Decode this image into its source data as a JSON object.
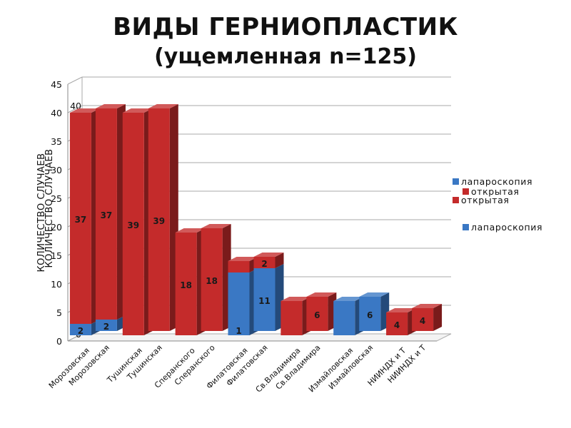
{
  "title": "ВИДЫ ГЕРНИОПЛАСТИК",
  "subtitle": "(ущемленная n=125)",
  "chart_data": {
    "type": "bar",
    "stacked": true,
    "three_d": true,
    "title": "ВИДЫ ГЕРНИОПЛАСТИК",
    "subtitle": "(ущемленная n=125)",
    "ylabel": "КОЛИЧЕСТВО СЛУЧАЕВ",
    "ylim": [
      0,
      45
    ],
    "yticks": [
      0,
      5,
      10,
      15,
      20,
      25,
      30,
      35,
      40,
      45
    ],
    "back_yticks": [
      0,
      5,
      10,
      15,
      20,
      25,
      30,
      35,
      40
    ],
    "grid": true,
    "legend_position": "right",
    "categories": [
      "Морозовская",
      "Тушинская",
      "Сперанского",
      "Филатовская",
      "Св.Владимира",
      "Измайловская",
      "НИИНДХ и Т"
    ],
    "series": [
      {
        "name": "лапароскопия",
        "color": "#3a78c4",
        "values": [
          2,
          0,
          0,
          11,
          0,
          6,
          0
        ]
      },
      {
        "name": "открытая",
        "color": "#c42b2b",
        "values": [
          37,
          39,
          18,
          2,
          6,
          0,
          4
        ]
      }
    ],
    "data_labels": {
      "лапароскопия": [
        "2",
        "",
        "",
        "11",
        "",
        "6",
        ""
      ],
      "открытая": [
        "37",
        "39",
        "18",
        "2",
        "6",
        "",
        "4"
      ]
    },
    "ghost_labels": {
      "лапароскопия": [
        "2",
        "",
        "",
        "1",
        "",
        "",
        ""
      ],
      "открытая": [
        "37",
        "39",
        "18",
        "",
        "",
        "",
        "4"
      ]
    },
    "legend_entries": [
      "лапароскопия",
      "открытая",
      "открытая",
      "лапароскопия"
    ]
  }
}
